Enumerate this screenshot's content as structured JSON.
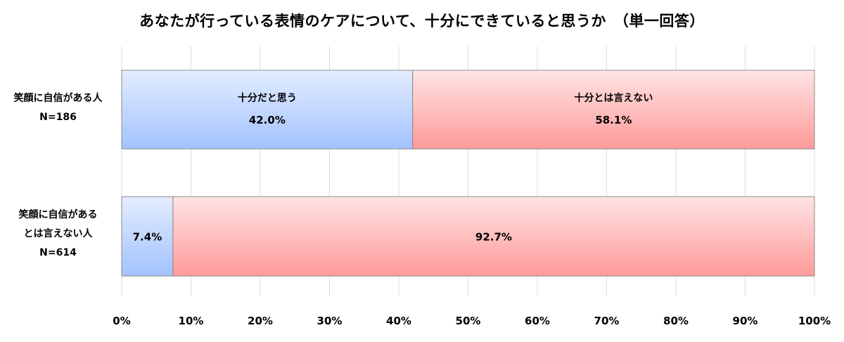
{
  "chart_data": {
    "type": "bar",
    "orientation": "horizontal",
    "stacked": true,
    "percent": true,
    "title": "あなたが行っている表情のケアについて、十分にできていると思うか　（単一回答）",
    "categories": [
      [
        "笑顔に自信がある人",
        "N=186"
      ],
      [
        "笑顔に自信がある",
        "とは言えない人",
        "N=614"
      ]
    ],
    "series": [
      {
        "name": "十分だと思う",
        "values": [
          42.0,
          7.4
        ],
        "labels": [
          "42.0%",
          "7.4%"
        ],
        "color": "#a9c8ff"
      },
      {
        "name": "十分とは言えない",
        "values": [
          58.1,
          92.7
        ],
        "labels": [
          "58.1%",
          "92.7%"
        ],
        "color": "#ff9f9f"
      }
    ],
    "xlim": [
      0,
      100
    ],
    "xticks": [
      "0%",
      "10%",
      "20%",
      "30%",
      "40%",
      "50%",
      "60%",
      "70%",
      "80%",
      "90%",
      "100%"
    ],
    "grid": true,
    "legend": "none"
  }
}
